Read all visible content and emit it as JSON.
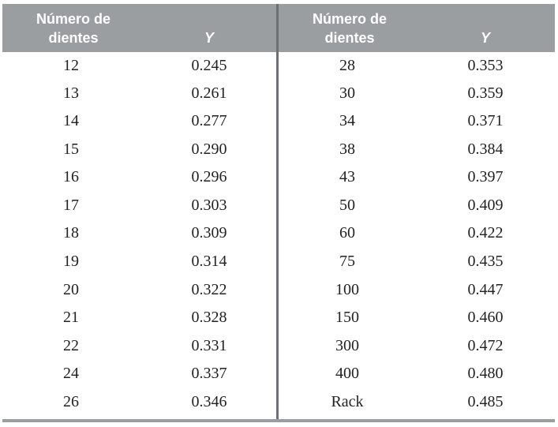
{
  "table": {
    "headers": {
      "left_teeth": "Número de\ndientes",
      "left_y": "Y",
      "right_teeth": "Número de\ndientes",
      "right_y": "Y"
    },
    "rows": [
      [
        "12",
        "0.245",
        "28",
        "0.353"
      ],
      [
        "13",
        "0.261",
        "30",
        "0.359"
      ],
      [
        "14",
        "0.277",
        "34",
        "0.371"
      ],
      [
        "15",
        "0.290",
        "38",
        "0.384"
      ],
      [
        "16",
        "0.296",
        "43",
        "0.397"
      ],
      [
        "17",
        "0.303",
        "50",
        "0.409"
      ],
      [
        "18",
        "0.309",
        "60",
        "0.422"
      ],
      [
        "19",
        "0.314",
        "75",
        "0.435"
      ],
      [
        "20",
        "0.322",
        "100",
        "0.447"
      ],
      [
        "21",
        "0.328",
        "150",
        "0.460"
      ],
      [
        "22",
        "0.331",
        "300",
        "0.472"
      ],
      [
        "24",
        "0.337",
        "400",
        "0.480"
      ],
      [
        "26",
        "0.346",
        "Rack",
        "0.485"
      ]
    ]
  },
  "colors": {
    "header_bg": "#9b9ea1",
    "header_text": "#ffffff",
    "divider": "#6d7074",
    "cell_text": "#222222"
  }
}
